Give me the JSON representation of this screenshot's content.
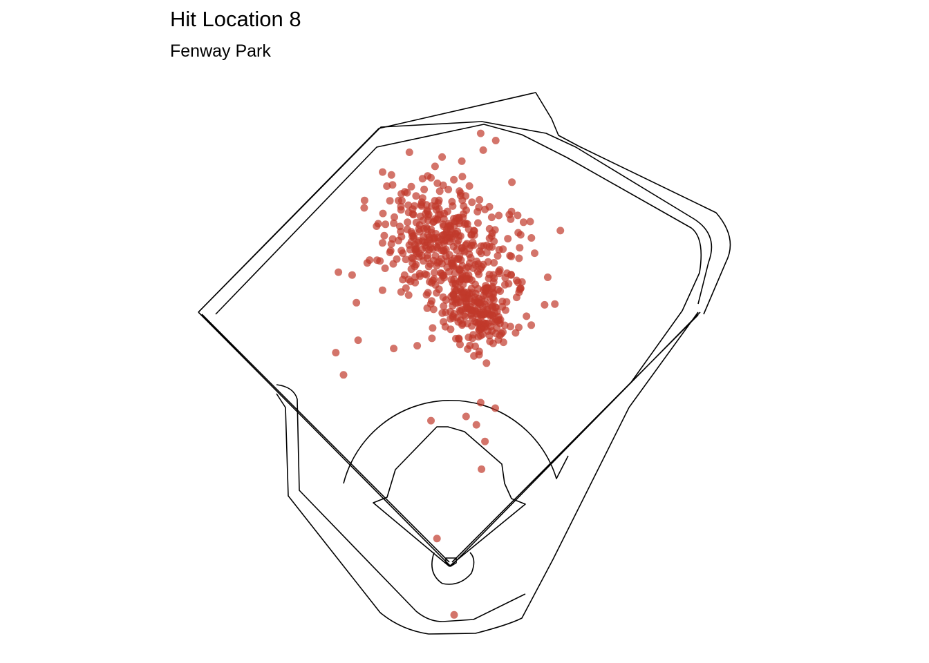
{
  "chart_data": {
    "type": "scatter",
    "title": "Hit Location 8",
    "subtitle": "Fenway Park",
    "xlabel": "",
    "ylabel": "",
    "grid": false,
    "point_color": "#C0392B",
    "point_opacity": 0.7,
    "n_points": 620,
    "outliers": [
      {
        "x": -108,
        "y": 163
      },
      {
        "x": -134,
        "y": 154
      },
      {
        "x": -125,
        "y": 138
      },
      {
        "x": -110,
        "y": 190
      },
      {
        "x": -115,
        "y": 210
      },
      {
        "x": -131,
        "y": 212
      },
      {
        "x": 52,
        "y": 114
      },
      {
        "x": 35,
        "y": 118
      },
      {
        "x": 30,
        "y": 102
      },
      {
        "x": -23,
        "y": 105
      },
      {
        "x": 18,
        "y": 108
      },
      {
        "x": 40,
        "y": 90
      },
      {
        "x": 36,
        "y": 70
      },
      {
        "x": -16,
        "y": 20
      },
      {
        "x": 4,
        "y": -35
      },
      {
        "x": 128,
        "y": 242
      },
      {
        "x": 85,
        "y": 248
      },
      {
        "x": -10,
        "y": 295
      },
      {
        "x": 38,
        "y": 300
      },
      {
        "x": 13,
        "y": 292
      }
    ],
    "clusters": [
      {
        "cx": -20,
        "cy": 235,
        "sx": 32,
        "sy": 22,
        "n": 230
      },
      {
        "cx": 35,
        "cy": 185,
        "sx": 22,
        "sy": 15,
        "n": 200
      },
      {
        "cx": 20,
        "cy": 228,
        "sx": 36,
        "sy": 26,
        "n": 170
      }
    ]
  }
}
